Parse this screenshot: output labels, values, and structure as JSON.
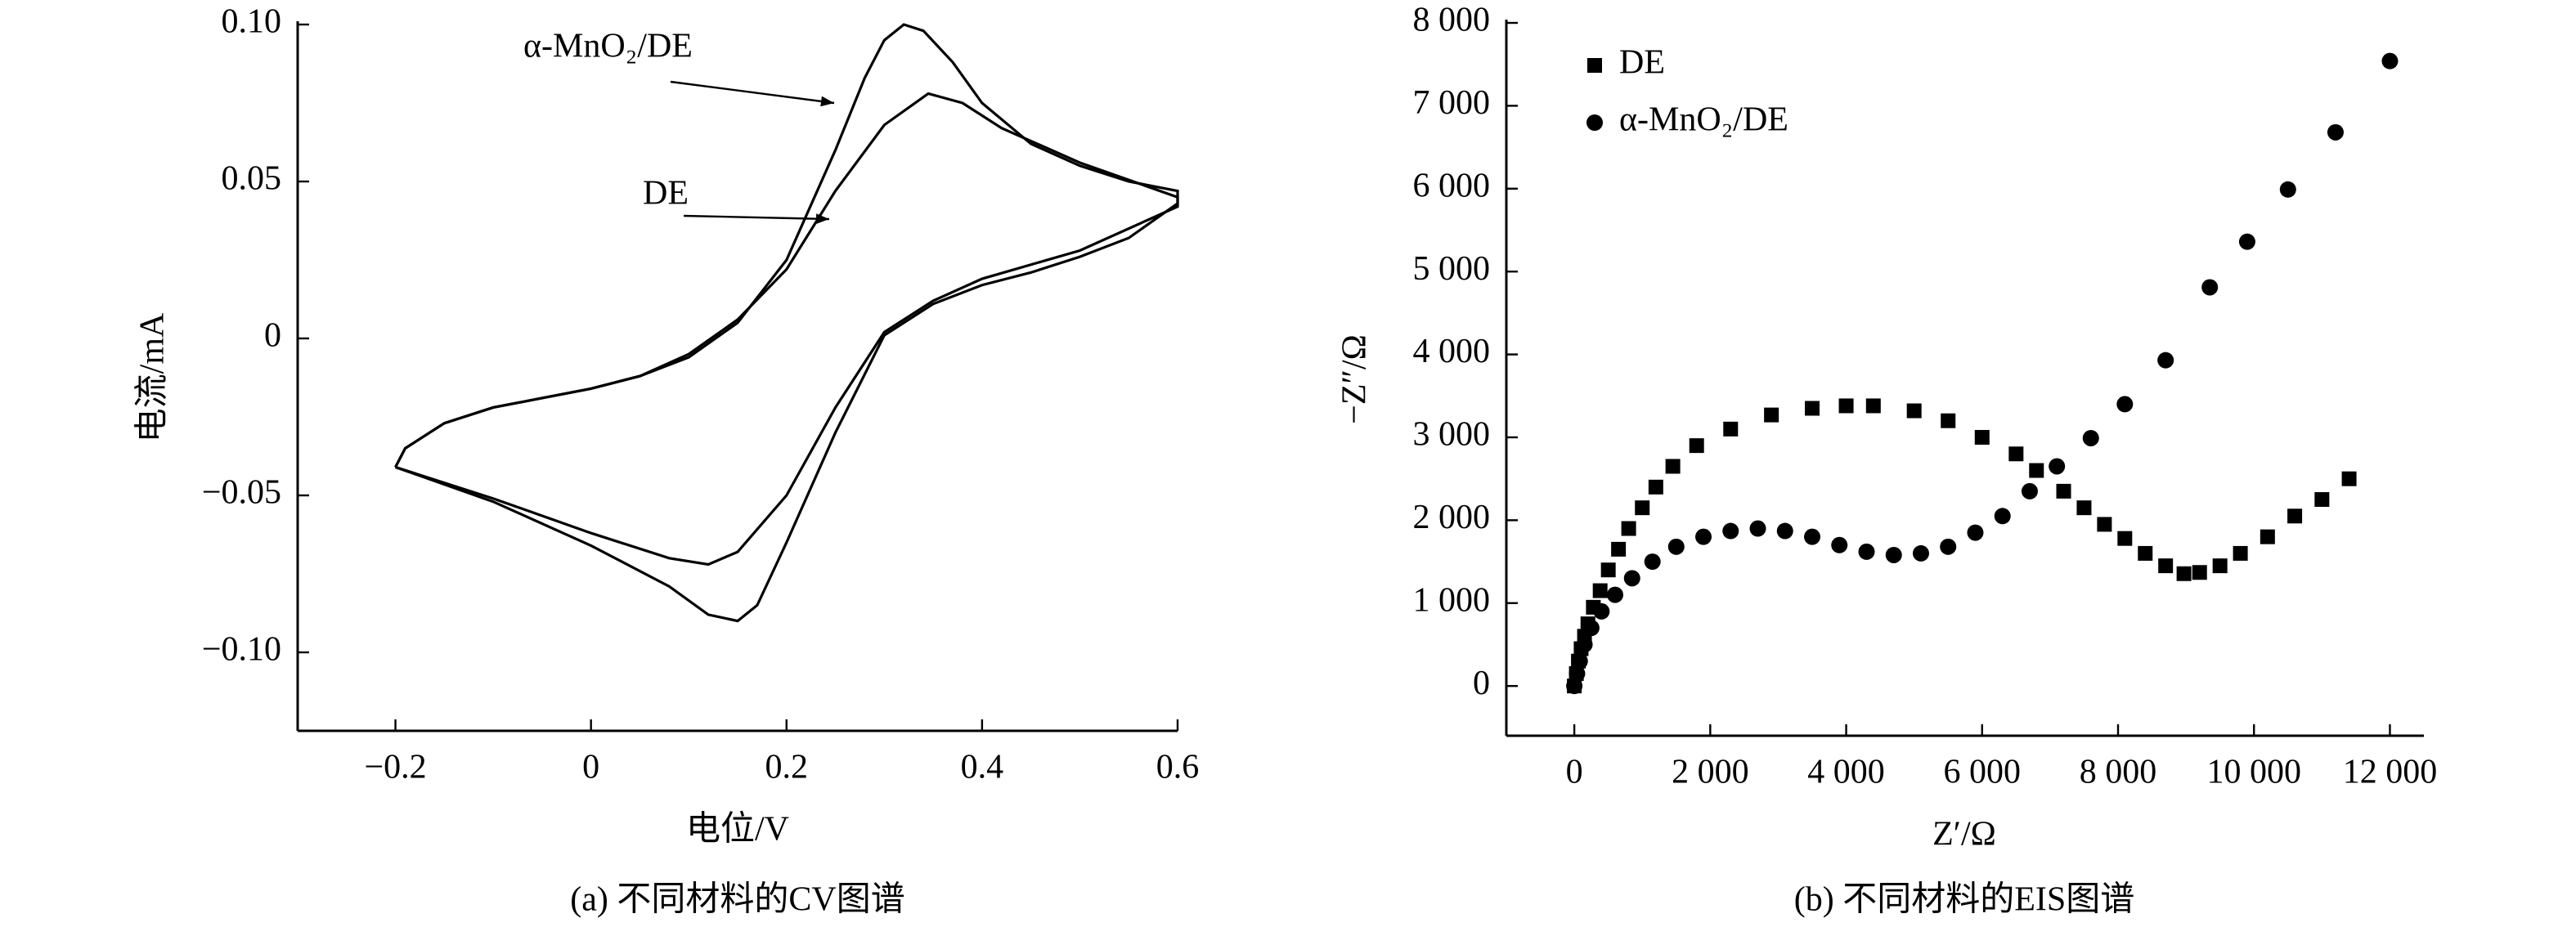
{
  "chart_data": [
    {
      "type": "line",
      "title": "(a) 不同材料的CV图谱",
      "xlabel": "电位/V",
      "ylabel": "电流/mA",
      "xlim": [
        -0.3,
        0.6
      ],
      "ylim": [
        -0.125,
        0.1
      ],
      "xticks": [
        {
          "value": -0.2,
          "label": "−0.2"
        },
        0,
        0.2,
        0.4,
        0.6
      ],
      "yticks": [
        {
          "value": -0.1,
          "label": "−0.10"
        },
        {
          "value": -0.05,
          "label": "−0.05"
        },
        0,
        0.05,
        {
          "value": 0.1,
          "label": "0.10"
        }
      ],
      "series": [
        {
          "name": "α-MnO₂/DE",
          "color": "#000000",
          "x": [
            -0.2,
            -0.19,
            -0.15,
            -0.1,
            -0.05,
            0,
            0.05,
            0.1,
            0.15,
            0.2,
            0.25,
            0.28,
            0.3,
            0.32,
            0.34,
            0.37,
            0.4,
            0.45,
            0.5,
            0.55,
            0.6,
            0.6,
            0.55,
            0.5,
            0.45,
            0.4,
            0.35,
            0.3,
            0.25,
            0.2,
            0.17,
            0.15,
            0.12,
            0.08,
            0.0,
            -0.1,
            -0.2
          ],
          "values": [
            -0.041,
            -0.035,
            -0.027,
            -0.022,
            -0.019,
            -0.016,
            -0.012,
            -0.006,
            0.005,
            0.025,
            0.06,
            0.083,
            0.095,
            0.1,
            0.098,
            0.088,
            0.075,
            0.062,
            0.055,
            0.05,
            0.047,
            0.043,
            0.032,
            0.026,
            0.021,
            0.017,
            0.011,
            0.001,
            -0.03,
            -0.065,
            -0.085,
            -0.09,
            -0.088,
            -0.079,
            -0.066,
            -0.052,
            -0.041
          ]
        },
        {
          "name": "DE",
          "color": "#000000",
          "x": [
            -0.2,
            -0.19,
            -0.15,
            -0.1,
            -0.05,
            0,
            0.05,
            0.1,
            0.15,
            0.2,
            0.25,
            0.3,
            0.345,
            0.38,
            0.42,
            0.5,
            0.6,
            0.6,
            0.5,
            0.4,
            0.35,
            0.3,
            0.25,
            0.2,
            0.15,
            0.12,
            0.08,
            0.0,
            -0.1,
            -0.2
          ],
          "values": [
            -0.041,
            -0.035,
            -0.027,
            -0.022,
            -0.019,
            -0.016,
            -0.012,
            -0.005,
            0.006,
            0.022,
            0.047,
            0.068,
            0.078,
            0.075,
            0.067,
            0.056,
            0.045,
            0.042,
            0.028,
            0.019,
            0.012,
            0.002,
            -0.022,
            -0.05,
            -0.068,
            -0.072,
            -0.07,
            -0.062,
            -0.051,
            -0.041
          ]
        }
      ]
    },
    {
      "type": "scatter",
      "title": "(b) 不同材料的EIS图谱",
      "xlabel": "Z′/Ω",
      "ylabel": "−Z″/Ω",
      "xlim": [
        -1000,
        12500
      ],
      "ylim": [
        -600,
        8000
      ],
      "xticks": [
        0,
        {
          "value": 2000,
          "label": "2 000"
        },
        {
          "value": 4000,
          "label": "4 000"
        },
        {
          "value": 6000,
          "label": "6 000"
        },
        {
          "value": 8000,
          "label": "8 000"
        },
        {
          "value": 10000,
          "label": "10 000"
        },
        {
          "value": 12000,
          "label": "12 000"
        }
      ],
      "yticks": [
        0,
        {
          "value": 1000,
          "label": "1 000"
        },
        {
          "value": 2000,
          "label": "2 000"
        },
        {
          "value": 3000,
          "label": "3 000"
        },
        {
          "value": 4000,
          "label": "4 000"
        },
        {
          "value": 5000,
          "label": "5 000"
        },
        {
          "value": 6000,
          "label": "6 000"
        },
        {
          "value": 7000,
          "label": "7 000"
        },
        {
          "value": 8000,
          "label": "8 000"
        }
      ],
      "legend": "upper left",
      "series": [
        {
          "name": "DE",
          "marker": "square",
          "color": "#000000",
          "x": [
            0,
            30,
            60,
            100,
            150,
            200,
            280,
            380,
            500,
            650,
            800,
            1000,
            1200,
            1450,
            1800,
            2300,
            2900,
            3500,
            4000,
            4400,
            5000,
            5500,
            6000,
            6500,
            6800,
            7200,
            7500,
            7800,
            8100,
            8400,
            8700,
            8970,
            9200,
            9500,
            9800,
            10200,
            10600,
            11000,
            11400
          ],
          "values": [
            0,
            150,
            300,
            450,
            600,
            750,
            950,
            1150,
            1400,
            1650,
            1900,
            2150,
            2400,
            2650,
            2900,
            3100,
            3270,
            3350,
            3380,
            3380,
            3320,
            3200,
            3000,
            2800,
            2600,
            2350,
            2150,
            1950,
            1780,
            1600,
            1450,
            1355,
            1370,
            1450,
            1600,
            1800,
            2050,
            2250,
            2500
          ]
        },
        {
          "name": "α-MnO₂/DE",
          "marker": "circle",
          "color": "#000000",
          "x": [
            0,
            40,
            80,
            150,
            250,
            400,
            600,
            850,
            1150,
            1500,
            1900,
            2300,
            2700,
            3100,
            3500,
            3900,
            4300,
            4700,
            5100,
            5500,
            5900,
            6300,
            6700,
            7100,
            7600,
            8100,
            8700,
            9350,
            9900,
            10500,
            11200,
            12000
          ],
          "values": [
            0,
            150,
            300,
            500,
            700,
            900,
            1100,
            1300,
            1500,
            1680,
            1800,
            1870,
            1900,
            1870,
            1800,
            1700,
            1620,
            1580,
            1600,
            1680,
            1850,
            2050,
            2350,
            2650,
            2990,
            3400,
            3930,
            4810,
            5360,
            5990,
            6680,
            7540
          ]
        }
      ]
    }
  ]
}
